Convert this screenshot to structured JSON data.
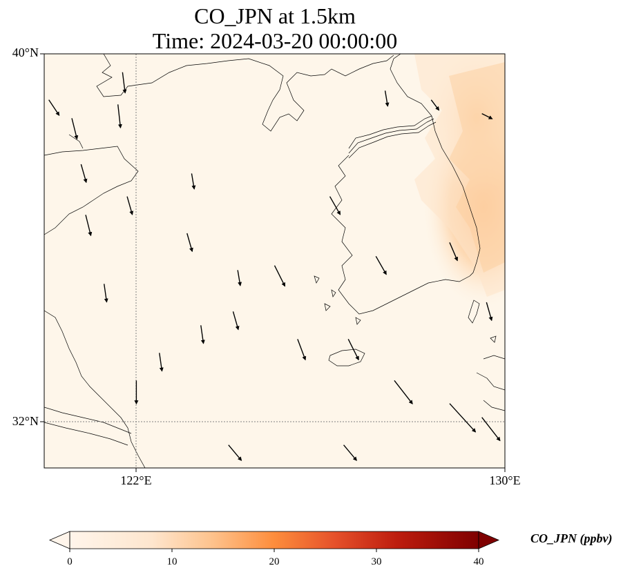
{
  "title_line1": "CO_JPN at 1.5km",
  "title_line2": "Time: 2024-03-20 00:00:00",
  "lat_labels": [
    "40°N",
    "32°N"
  ],
  "lon_labels": [
    "122°E",
    "130°E"
  ],
  "colorbar": {
    "label": "CO_JPN (ppbv)",
    "ticks": [
      "0",
      "10",
      "20",
      "30",
      "40"
    ],
    "colors": [
      "#fff5eb",
      "#fdd9b4",
      "#fda762",
      "#e95e0d",
      "#c42d0e",
      "#7f0000"
    ]
  },
  "map": {
    "extent": {
      "lon_min": 120,
      "lon_max": 130,
      "lat_min": 31,
      "lat_max": 40
    },
    "background_color": "#fef6ea",
    "land_outline_color": "#000000",
    "gridline_color": "#808080"
  },
  "chart_data": {
    "type": "heatmap",
    "title": "CO_JPN at 1.5km",
    "subtitle": "Time: 2024-03-20 00:00:00",
    "variable": "CO_JPN",
    "units": "ppbv",
    "colorbar_range": [
      0,
      40
    ],
    "xlim": [
      120,
      130
    ],
    "ylim": [
      31,
      40
    ],
    "x_ticks": [
      122,
      130
    ],
    "y_ticks": [
      32,
      40
    ],
    "gridlines": true,
    "high_concentration_region": {
      "description_lon_range": [
        128.2,
        130
      ],
      "description_lat_range": [
        33.8,
        40
      ],
      "peak_value": 5
    },
    "wind": {
      "prevailing_direction": "north-northwesterly",
      "vectors": [
        {
          "lon": 120.1,
          "lat": 39.0,
          "u": 0.2,
          "v": -0.3
        },
        {
          "lon": 120.6,
          "lat": 38.6,
          "u": 0.1,
          "v": -0.4
        },
        {
          "lon": 121.7,
          "lat": 39.6,
          "u": 0.05,
          "v": -0.4
        },
        {
          "lon": 121.6,
          "lat": 38.9,
          "u": 0.05,
          "v": -0.45
        },
        {
          "lon": 120.8,
          "lat": 37.6,
          "u": 0.1,
          "v": -0.35
        },
        {
          "lon": 120.9,
          "lat": 36.5,
          "u": 0.1,
          "v": -0.4
        },
        {
          "lon": 121.8,
          "lat": 36.9,
          "u": 0.1,
          "v": -0.35
        },
        {
          "lon": 123.2,
          "lat": 37.4,
          "u": 0.05,
          "v": -0.3
        },
        {
          "lon": 123.1,
          "lat": 36.1,
          "u": 0.1,
          "v": -0.35
        },
        {
          "lon": 124.2,
          "lat": 35.3,
          "u": 0.05,
          "v": -0.3
        },
        {
          "lon": 123.4,
          "lat": 34.1,
          "u": 0.05,
          "v": -0.35
        },
        {
          "lon": 121.3,
          "lat": 35.0,
          "u": 0.05,
          "v": -0.35
        },
        {
          "lon": 122.5,
          "lat": 33.5,
          "u": 0.05,
          "v": -0.35
        },
        {
          "lon": 122.0,
          "lat": 32.9,
          "u": 0.0,
          "v": -0.45
        },
        {
          "lon": 124.1,
          "lat": 34.4,
          "u": 0.1,
          "v": -0.35
        },
        {
          "lon": 125.0,
          "lat": 35.4,
          "u": 0.2,
          "v": -0.4
        },
        {
          "lon": 125.5,
          "lat": 33.8,
          "u": 0.15,
          "v": -0.4
        },
        {
          "lon": 126.6,
          "lat": 33.8,
          "u": 0.2,
          "v": -0.4
        },
        {
          "lon": 127.6,
          "lat": 32.9,
          "u": 0.35,
          "v": -0.45
        },
        {
          "lon": 128.8,
          "lat": 32.4,
          "u": 0.5,
          "v": -0.55
        },
        {
          "lon": 129.5,
          "lat": 32.1,
          "u": 0.35,
          "v": -0.45
        },
        {
          "lon": 127.2,
          "lat": 35.6,
          "u": 0.2,
          "v": -0.35
        },
        {
          "lon": 128.8,
          "lat": 35.9,
          "u": 0.15,
          "v": -0.35
        },
        {
          "lon": 129.6,
          "lat": 34.6,
          "u": 0.1,
          "v": -0.35
        },
        {
          "lon": 127.4,
          "lat": 39.2,
          "u": 0.05,
          "v": -0.3
        },
        {
          "lon": 128.4,
          "lat": 39.0,
          "u": 0.15,
          "v": -0.2
        },
        {
          "lon": 129.5,
          "lat": 38.7,
          "u": 0.2,
          "v": -0.1
        },
        {
          "lon": 126.2,
          "lat": 36.9,
          "u": 0.2,
          "v": -0.35
        },
        {
          "lon": 124.0,
          "lat": 31.5,
          "u": 0.25,
          "v": -0.3
        },
        {
          "lon": 126.5,
          "lat": 31.5,
          "u": 0.25,
          "v": -0.3
        }
      ]
    }
  }
}
